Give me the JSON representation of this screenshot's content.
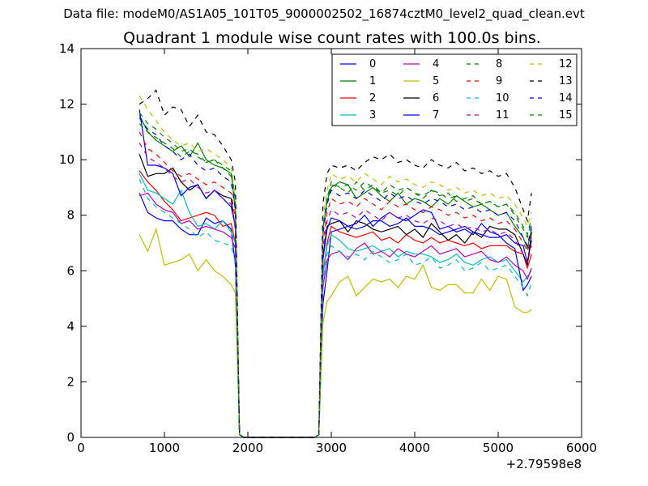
{
  "suptitle": "Data file: modeM0/AS1A05_101T05_9000002502_16874cztM0_level2_quad_clean.evt",
  "title": "Quadrant 1 module wise count rates with 100.0s bins.",
  "offset_label": "+2.79598e8",
  "chart_data": {
    "type": "line",
    "title": "Quadrant 1 module wise count rates with 100.0s bins.",
    "xlim": [
      0,
      6000
    ],
    "ylim": [
      0,
      14
    ],
    "xticks": [
      0,
      1000,
      2000,
      3000,
      4000,
      5000,
      6000
    ],
    "yticks": [
      0,
      2,
      4,
      6,
      8,
      10,
      12,
      14
    ],
    "x_offset": "+2.79598e8",
    "legend_position": "top-right",
    "x": [
      700,
      800,
      900,
      1000,
      1100,
      1200,
      1300,
      1400,
      1500,
      1600,
      1700,
      1800,
      1850,
      1900,
      1950,
      2000,
      2100,
      2200,
      2300,
      2400,
      2500,
      2600,
      2700,
      2800,
      2850,
      2900,
      2950,
      3000,
      3100,
      3200,
      3300,
      3400,
      3500,
      3600,
      3700,
      3800,
      3900,
      4000,
      4100,
      4200,
      4300,
      4400,
      4500,
      4600,
      4700,
      4800,
      4900,
      5000,
      5100,
      5200,
      5300,
      5350,
      5400
    ],
    "series": [
      {
        "name": "0",
        "color": "#0000ff",
        "dash": false,
        "values": [
          8.8,
          8.1,
          7.9,
          7.8,
          7.8,
          7.5,
          7.3,
          7.3,
          7.9,
          7.7,
          7.8,
          7.5,
          6.2,
          0.1,
          0,
          0,
          0,
          0,
          0,
          0,
          0,
          0,
          0,
          0,
          0.1,
          4.8,
          6.0,
          7.4,
          7.5,
          7.6,
          7.5,
          7.6,
          7.8,
          7.8,
          7.6,
          7.7,
          7.9,
          7.6,
          7.6,
          7.5,
          7.3,
          7.4,
          7.5,
          7.6,
          7.4,
          7.3,
          7.2,
          7.2,
          7.3,
          7.0,
          6.9,
          6.3,
          7.1
        ]
      },
      {
        "name": "1",
        "color": "#008000",
        "dash": false,
        "values": [
          11.6,
          11.0,
          10.7,
          10.5,
          10.3,
          10.5,
          10.1,
          10.6,
          10.0,
          9.8,
          9.7,
          9.5,
          8.2,
          0.1,
          0,
          0,
          0,
          0,
          0,
          0,
          0,
          0,
          0,
          0,
          0.1,
          7.5,
          8.5,
          9.0,
          9.2,
          9.1,
          8.6,
          8.8,
          9.0,
          8.7,
          8.5,
          8.8,
          8.4,
          8.6,
          8.5,
          8.3,
          8.6,
          8.4,
          8.7,
          8.5,
          8.3,
          8.4,
          8.2,
          8.0,
          8.1,
          7.6,
          7.2,
          6.8,
          7.5
        ]
      },
      {
        "name": "2",
        "color": "#ff0000",
        "dash": false,
        "values": [
          9.6,
          9.2,
          8.9,
          8.5,
          8.2,
          7.8,
          7.9,
          8.0,
          8.1,
          8.0,
          7.6,
          7.7,
          7.0,
          0.1,
          0,
          0,
          0,
          0,
          0,
          0,
          0,
          0,
          0,
          0,
          0.1,
          5.9,
          7.0,
          7.6,
          7.4,
          7.3,
          7.2,
          7.3,
          7.4,
          7.1,
          7.2,
          7.0,
          7.3,
          7.1,
          7.0,
          7.2,
          7.0,
          7.1,
          7.0,
          6.9,
          7.0,
          6.8,
          6.9,
          6.9,
          6.9,
          6.7,
          6.6,
          6.1,
          6.6
        ]
      },
      {
        "name": "3",
        "color": "#00bfbf",
        "dash": false,
        "values": [
          9.5,
          8.9,
          8.8,
          8.6,
          8.4,
          8.9,
          8.1,
          7.6,
          7.7,
          7.5,
          7.8,
          7.4,
          7.0,
          0.1,
          0,
          0,
          0,
          0,
          0,
          0,
          0,
          0,
          0,
          0,
          0.1,
          5.8,
          6.9,
          7.3,
          7.1,
          6.8,
          6.7,
          6.8,
          6.9,
          6.7,
          6.8,
          6.5,
          6.7,
          6.6,
          6.6,
          6.5,
          6.3,
          6.4,
          6.6,
          6.3,
          6.2,
          6.4,
          6.5,
          6.3,
          6.4,
          6.0,
          5.6,
          5.8,
          6.0
        ]
      },
      {
        "name": "4",
        "color": "#bf00bf",
        "dash": false,
        "values": [
          8.7,
          8.8,
          8.4,
          8.2,
          8.1,
          7.7,
          7.8,
          7.5,
          7.6,
          7.5,
          7.4,
          7.2,
          6.8,
          0.1,
          0,
          0,
          0,
          0,
          0,
          0,
          0,
          0,
          0,
          0,
          0.1,
          5.4,
          6.4,
          6.6,
          6.7,
          6.4,
          6.8,
          7.0,
          6.6,
          6.7,
          6.5,
          6.8,
          6.6,
          6.5,
          6.7,
          6.9,
          6.6,
          6.7,
          6.8,
          6.5,
          6.6,
          6.7,
          6.4,
          6.3,
          6.5,
          6.2,
          6.0,
          5.7,
          6.1
        ]
      },
      {
        "name": "5",
        "color": "#bfbf00",
        "dash": false,
        "values": [
          7.3,
          6.7,
          7.5,
          6.2,
          6.3,
          6.4,
          6.6,
          6.0,
          6.4,
          6.0,
          5.8,
          5.5,
          5.2,
          0.1,
          0,
          0,
          0,
          0,
          0,
          0,
          0,
          0,
          0,
          0,
          0.1,
          4.1,
          4.9,
          5.1,
          5.6,
          5.8,
          5.1,
          5.4,
          5.7,
          5.6,
          5.7,
          5.4,
          5.8,
          5.7,
          6.2,
          5.4,
          5.3,
          5.5,
          5.5,
          5.2,
          5.2,
          5.7,
          5.3,
          5.8,
          5.7,
          4.7,
          4.5,
          4.5,
          4.6
        ]
      },
      {
        "name": "6",
        "color": "#000000",
        "dash": false,
        "values": [
          10.2,
          9.4,
          9.5,
          9.5,
          9.7,
          9.2,
          8.9,
          9.1,
          8.6,
          8.9,
          8.7,
          8.6,
          7.5,
          0.1,
          0,
          0,
          0,
          0,
          0,
          0,
          0,
          0,
          0,
          0,
          0.1,
          6.5,
          7.6,
          7.7,
          7.8,
          7.4,
          7.8,
          7.7,
          7.5,
          7.4,
          7.5,
          7.6,
          7.3,
          7.5,
          7.2,
          7.7,
          7.4,
          7.1,
          7.3,
          7.0,
          7.4,
          7.2,
          7.6,
          7.5,
          7.5,
          7.3,
          6.6,
          6.2,
          7.4
        ]
      },
      {
        "name": "7",
        "color": "#0000ff",
        "dash": false,
        "values": [
          11.8,
          9.8,
          9.8,
          9.7,
          9.5,
          8.7,
          9.0,
          9.1,
          8.6,
          8.9,
          8.6,
          8.3,
          7.6,
          0.1,
          0,
          0,
          0,
          0,
          0,
          0,
          0,
          0,
          0,
          0,
          0.1,
          6.4,
          7.5,
          7.9,
          7.8,
          7.6,
          7.7,
          8.0,
          7.6,
          7.9,
          8.1,
          7.9,
          7.8,
          8.0,
          8.2,
          8.1,
          7.5,
          7.6,
          7.4,
          7.5,
          7.3,
          7.7,
          7.4,
          7.3,
          7.0,
          6.8,
          5.3,
          5.5,
          5.8
        ]
      },
      {
        "name": "8",
        "color": "#008000",
        "dash": true,
        "values": [
          11.3,
          11.0,
          10.8,
          10.6,
          10.4,
          10.1,
          10.3,
          10.2,
          9.9,
          10.0,
          9.8,
          9.6,
          8.6,
          0.1,
          0,
          0,
          0,
          0,
          0,
          0,
          0,
          0,
          0,
          0,
          0.1,
          7.6,
          8.6,
          9.1,
          9.0,
          8.8,
          9.2,
          8.9,
          9.1,
          8.8,
          8.9,
          8.7,
          9.0,
          8.8,
          8.6,
          8.9,
          8.7,
          8.8,
          8.5,
          8.6,
          8.7,
          8.4,
          8.5,
          8.3,
          8.4,
          8.0,
          7.5,
          7.2,
          7.8
        ]
      },
      {
        "name": "9",
        "color": "#ff0000",
        "dash": true,
        "values": [
          11.0,
          10.4,
          10.2,
          9.9,
          9.6,
          9.4,
          9.5,
          9.3,
          9.1,
          9.2,
          9.0,
          8.8,
          7.9,
          0.1,
          0,
          0,
          0,
          0,
          0,
          0,
          0,
          0,
          0,
          0,
          0.1,
          7.0,
          8.1,
          8.6,
          8.4,
          8.5,
          8.3,
          8.6,
          8.4,
          8.2,
          8.5,
          8.3,
          8.4,
          8.2,
          8.1,
          8.3,
          8.2,
          8.0,
          8.1,
          7.9,
          8.0,
          7.8,
          7.9,
          7.7,
          7.8,
          7.5,
          7.0,
          6.7,
          7.2
        ]
      },
      {
        "name": "10",
        "color": "#00bfbf",
        "dash": true,
        "values": [
          9.3,
          8.6,
          8.3,
          8.1,
          7.9,
          7.7,
          7.5,
          7.2,
          7.4,
          7.1,
          7.0,
          6.9,
          6.3,
          0.1,
          0,
          0,
          0,
          0,
          0,
          0,
          0,
          0,
          0,
          0,
          0.1,
          5.6,
          6.6,
          6.9,
          6.7,
          6.5,
          6.6,
          6.4,
          6.7,
          6.5,
          6.3,
          6.4,
          6.6,
          6.2,
          6.3,
          6.5,
          6.1,
          6.2,
          6.4,
          6.0,
          6.1,
          6.3,
          6.0,
          6.1,
          6.2,
          5.8,
          5.4,
          5.1,
          5.6
        ]
      },
      {
        "name": "11",
        "color": "#bf00bf",
        "dash": true,
        "values": [
          10.6,
          10.1,
          9.9,
          9.7,
          9.4,
          9.2,
          9.3,
          9.0,
          8.8,
          8.9,
          8.6,
          8.4,
          7.6,
          0.1,
          0,
          0,
          0,
          0,
          0,
          0,
          0,
          0,
          0,
          0,
          0.1,
          6.8,
          7.8,
          8.2,
          8.0,
          8.1,
          7.9,
          8.2,
          8.0,
          7.8,
          8.1,
          7.9,
          8.0,
          7.8,
          7.7,
          7.9,
          7.8,
          7.6,
          7.7,
          7.5,
          7.6,
          7.4,
          7.5,
          7.3,
          7.4,
          7.1,
          6.6,
          6.3,
          6.9
        ]
      },
      {
        "name": "12",
        "color": "#bfbf00",
        "dash": true,
        "values": [
          12.3,
          11.8,
          11.4,
          11.0,
          10.7,
          10.5,
          10.6,
          10.3,
          10.4,
          10.2,
          10.0,
          9.7,
          8.7,
          0.1,
          0,
          0,
          0,
          0,
          0,
          0,
          0,
          0,
          0,
          0,
          0.1,
          7.9,
          8.9,
          9.5,
          9.3,
          9.4,
          9.2,
          9.5,
          9.3,
          9.1,
          9.4,
          9.2,
          9.3,
          9.1,
          9.0,
          9.2,
          9.1,
          8.9,
          9.0,
          8.8,
          8.9,
          8.7,
          8.8,
          8.6,
          8.7,
          8.4,
          7.9,
          7.6,
          8.1
        ]
      },
      {
        "name": "13",
        "color": "#000000",
        "dash": true,
        "values": [
          12.0,
          12.2,
          12.5,
          11.6,
          11.9,
          11.8,
          11.2,
          11.6,
          11.0,
          10.9,
          10.5,
          10.0,
          9.2,
          0.1,
          0,
          0,
          0,
          0,
          0,
          0,
          0,
          0,
          0,
          0,
          0.1,
          8.4,
          9.5,
          9.8,
          9.7,
          9.8,
          9.6,
          9.9,
          10.1,
          10.0,
          10.2,
          9.9,
          10.0,
          9.8,
          9.7,
          10.0,
          9.8,
          9.7,
          9.9,
          9.6,
          9.7,
          9.5,
          9.6,
          9.4,
          9.5,
          9.0,
          8.2,
          7.8,
          8.8
        ]
      },
      {
        "name": "14",
        "color": "#0000ff",
        "dash": true,
        "values": [
          11.5,
          11.1,
          10.9,
          10.5,
          10.3,
          10.0,
          10.2,
          9.8,
          9.6,
          9.7,
          9.4,
          9.2,
          8.2,
          0.1,
          0,
          0,
          0,
          0,
          0,
          0,
          0,
          0,
          0,
          0,
          0.1,
          7.3,
          8.4,
          8.9,
          8.7,
          8.8,
          8.6,
          8.9,
          8.7,
          8.5,
          8.8,
          8.6,
          8.7,
          8.5,
          8.4,
          8.6,
          8.5,
          8.3,
          8.4,
          8.2,
          8.3,
          8.1,
          8.2,
          8.0,
          8.1,
          7.8,
          7.2,
          6.9,
          7.6
        ]
      },
      {
        "name": "15",
        "color": "#008000",
        "dash": true,
        "values": [
          11.7,
          11.3,
          11.1,
          10.8,
          10.6,
          10.3,
          10.4,
          10.1,
          9.9,
          10.0,
          9.7,
          9.4,
          8.5,
          0.1,
          0,
          0,
          0,
          0,
          0,
          0,
          0,
          0,
          0,
          0,
          0.1,
          7.5,
          8.6,
          9.2,
          9.0,
          9.1,
          8.9,
          9.2,
          9.0,
          8.8,
          9.1,
          8.9,
          9.0,
          8.8,
          8.7,
          8.9,
          8.8,
          8.6,
          8.7,
          8.5,
          8.6,
          8.4,
          8.5,
          8.3,
          8.4,
          8.1,
          7.6,
          7.3,
          7.9
        ]
      }
    ]
  }
}
